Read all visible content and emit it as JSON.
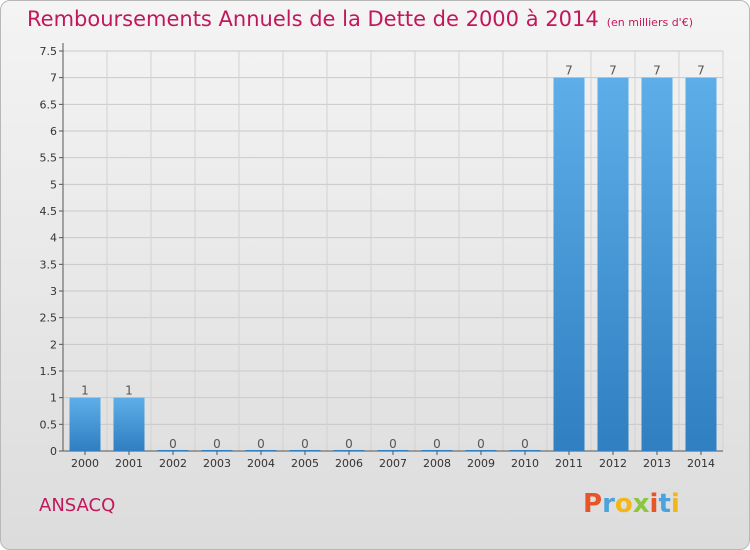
{
  "title": "Remboursements Annuels de la Dette de 2000 à 2014",
  "subtitle": "(en milliers d'€)",
  "commune": "ANSACQ",
  "logo": {
    "text": "Proxiti",
    "colors": [
      "#e8542a",
      "#4aa3df",
      "#f2b619",
      "#8cc63f"
    ]
  },
  "colors": {
    "bar_top": "#5daee8",
    "bar_bottom": "#2f7fc1",
    "title": "#c2185b"
  },
  "chart_data": {
    "type": "bar",
    "categories": [
      "2000",
      "2001",
      "2002",
      "2003",
      "2004",
      "2005",
      "2006",
      "2007",
      "2008",
      "2009",
      "2010",
      "2011",
      "2012",
      "2013",
      "2014"
    ],
    "values": [
      1,
      1,
      0,
      0,
      0,
      0,
      0,
      0,
      0,
      0,
      0,
      7,
      7,
      7,
      7
    ],
    "value_labels": [
      "1",
      "1",
      "0",
      "0",
      "0",
      "0",
      "0",
      "0",
      "0",
      "0",
      "0",
      "7",
      "7",
      "7",
      "7"
    ],
    "yticks": [
      "0",
      "0.5",
      "1",
      "1.5",
      "2",
      "2.5",
      "3",
      "3.5",
      "4",
      "4.5",
      "5",
      "5.5",
      "6",
      "6.5",
      "7",
      "7.5"
    ],
    "ylim": [
      0,
      7.5
    ],
    "grid": true,
    "legend": "none"
  }
}
